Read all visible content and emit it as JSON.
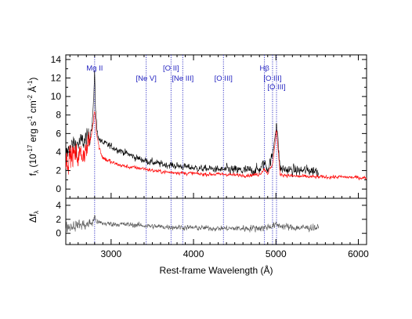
{
  "chart_data": [
    {
      "type": "line",
      "panel": "top",
      "title": "",
      "xlabel": "",
      "ylabel": "f_λ (10^-17 erg s^-1 cm^-2 Å^-1)",
      "ylabel_parts": {
        "sym": "f",
        "sub": "λ",
        "lead": " (10",
        "sup1": "-17",
        "mid1": " erg s",
        "sup2": "-1",
        "mid2": " cm",
        "sup3": "-2",
        "mid3": " Å",
        "sup4": "-1",
        "tail": ")"
      },
      "xlim": [
        2450,
        6100
      ],
      "ylim": [
        -1,
        14.5
      ],
      "yticks": [
        0,
        2,
        4,
        6,
        8,
        10,
        12,
        14
      ],
      "series": [
        {
          "color": "#000000",
          "x_range": [
            2450,
            5520
          ],
          "points": [
            [
              2450,
              3.6
            ],
            [
              2500,
              4.5
            ],
            [
              2550,
              4.8
            ],
            [
              2600,
              4.9
            ],
            [
              2650,
              5.1
            ],
            [
              2700,
              5.3
            ],
            [
              2740,
              5.8
            ],
            [
              2770,
              7.0
            ],
            [
              2790,
              10.0
            ],
            [
              2800,
              12.7
            ],
            [
              2810,
              9.0
            ],
            [
              2830,
              6.2
            ],
            [
              2860,
              5.3
            ],
            [
              2900,
              5.0
            ],
            [
              3000,
              4.6
            ],
            [
              3100,
              4.2
            ],
            [
              3200,
              3.8
            ],
            [
              3300,
              3.4
            ],
            [
              3400,
              3.1
            ],
            [
              3500,
              2.9
            ],
            [
              3600,
              2.7
            ],
            [
              3700,
              2.6
            ],
            [
              3800,
              2.5
            ],
            [
              3900,
              2.4
            ],
            [
              4000,
              2.3
            ],
            [
              4100,
              2.2
            ],
            [
              4200,
              2.2
            ],
            [
              4300,
              2.1
            ],
            [
              4400,
              2.1
            ],
            [
              4500,
              2.0
            ],
            [
              4600,
              2.0
            ],
            [
              4700,
              2.0
            ],
            [
              4800,
              2.1
            ],
            [
              4860,
              2.8
            ],
            [
              4900,
              2.2
            ],
            [
              4959,
              3.6
            ],
            [
              5007,
              7.3
            ],
            [
              5050,
              2.2
            ],
            [
              5200,
              2.0
            ],
            [
              5400,
              2.0
            ],
            [
              5520,
              2.0
            ]
          ]
        },
        {
          "color": "#ff0000",
          "x_range": [
            2450,
            6100
          ],
          "points": [
            [
              2450,
              3.0
            ],
            [
              2500,
              3.5
            ],
            [
              2550,
              3.7
            ],
            [
              2600,
              3.6
            ],
            [
              2650,
              3.8
            ],
            [
              2700,
              4.2
            ],
            [
              2750,
              5.3
            ],
            [
              2780,
              7.0
            ],
            [
              2800,
              8.7
            ],
            [
              2820,
              6.4
            ],
            [
              2850,
              4.6
            ],
            [
              2900,
              3.4
            ],
            [
              3000,
              2.9
            ],
            [
              3100,
              2.6
            ],
            [
              3200,
              2.4
            ],
            [
              3300,
              2.3
            ],
            [
              3400,
              2.2
            ],
            [
              3500,
              2.0
            ],
            [
              3600,
              1.9
            ],
            [
              3700,
              1.8
            ],
            [
              3800,
              1.8
            ],
            [
              3900,
              1.7
            ],
            [
              4000,
              1.7
            ],
            [
              4100,
              1.6
            ],
            [
              4200,
              1.6
            ],
            [
              4300,
              1.6
            ],
            [
              4400,
              1.6
            ],
            [
              4500,
              1.5
            ],
            [
              4600,
              1.5
            ],
            [
              4700,
              1.5
            ],
            [
              4800,
              1.6
            ],
            [
              4860,
              2.2
            ],
            [
              4900,
              1.7
            ],
            [
              4959,
              2.6
            ],
            [
              5007,
              6.4
            ],
            [
              5050,
              1.6
            ],
            [
              5200,
              1.4
            ],
            [
              5500,
              1.3
            ],
            [
              5800,
              1.3
            ],
            [
              6100,
              1.2
            ]
          ]
        }
      ]
    },
    {
      "type": "line",
      "panel": "bottom",
      "title": "",
      "ylabel": "Δf_λ",
      "ylabel_parts": {
        "sym": "Δf",
        "sub": "λ"
      },
      "xlabel": "Rest-frame Wavelength  (Å)",
      "xlim": [
        2450,
        6100
      ],
      "ylim": [
        -1.6,
        5.0
      ],
      "yticks": [
        0,
        2,
        4
      ],
      "xticks": [
        3000,
        4000,
        5000,
        6000
      ],
      "series": [
        {
          "color": "#555555",
          "x_range": [
            2450,
            5520
          ],
          "points": [
            [
              2450,
              0.9
            ],
            [
              2600,
              1.2
            ],
            [
              2700,
              1.2
            ],
            [
              2780,
              1.6
            ],
            [
              2800,
              2.4
            ],
            [
              2830,
              1.6
            ],
            [
              2900,
              1.4
            ],
            [
              3100,
              1.3
            ],
            [
              3300,
              1.2
            ],
            [
              3500,
              1.0
            ],
            [
              3700,
              0.9
            ],
            [
              4000,
              0.8
            ],
            [
              4300,
              0.7
            ],
            [
              4600,
              0.7
            ],
            [
              4860,
              0.8
            ],
            [
              5007,
              1.2
            ],
            [
              5200,
              0.8
            ],
            [
              5520,
              0.8
            ]
          ]
        }
      ]
    }
  ],
  "emission_lines": [
    {
      "label": "Mg II",
      "wavelength": 2800,
      "row": 0
    },
    {
      "label": "[Ne V]",
      "wavelength": 3426,
      "row": 1
    },
    {
      "label": "[O II]",
      "wavelength": 3727,
      "row": 0
    },
    {
      "label": "[Ne III]",
      "wavelength": 3869,
      "row": 1
    },
    {
      "label": "[O III]",
      "wavelength": 4363,
      "row": 1
    },
    {
      "label": "Hβ",
      "wavelength": 4861,
      "row": 0
    },
    {
      "label": "[O III]",
      "wavelength": 4959,
      "row": 1
    },
    {
      "label": "[O III]",
      "wavelength": 5007,
      "row": 2
    }
  ],
  "colors": {
    "emission_line": "#1f1fbf",
    "axis": "#000000"
  }
}
